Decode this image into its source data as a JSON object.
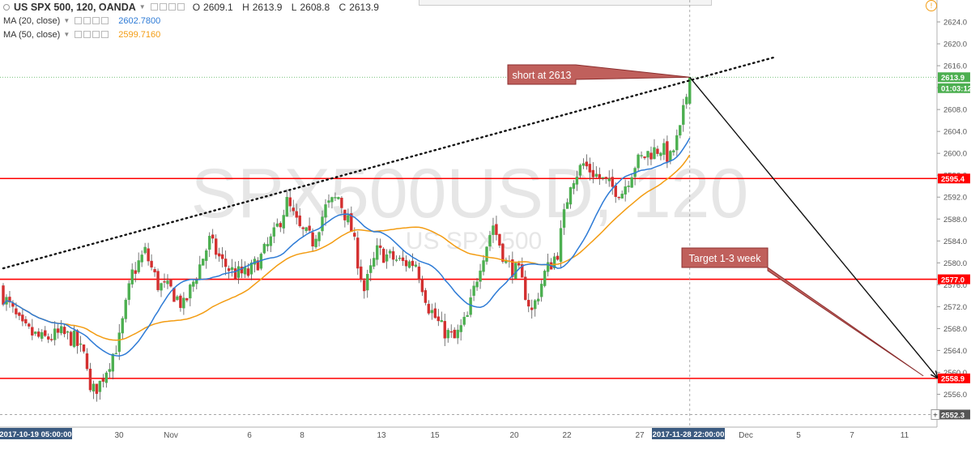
{
  "legend": {
    "symbol": "US SPX 500, 120, OANDA",
    "open_label": "O",
    "open": "2609.1",
    "high_label": "H",
    "high": "2613.9",
    "low_label": "L",
    "low": "2608.8",
    "close_label": "C",
    "close": "2613.9",
    "ma20_label": "MA (20, close)",
    "ma20_value": "2602.7800",
    "ma50_label": "MA (50, close)",
    "ma50_value": "2599.7160"
  },
  "watermark": {
    "main": "SPX500USD, 120",
    "sub": "US SPX 500"
  },
  "annotations": {
    "short": "short at 2613",
    "target": "Target 1-3 week"
  },
  "colors": {
    "up": "#4caf50",
    "down": "#d32f2f",
    "ma20": "#2e7bd6",
    "ma50": "#f39c12",
    "level": "#ff0000",
    "callout_fill": "#c0605c",
    "callout_border": "#8b2e2e"
  },
  "icons": {
    "alert": "alert-icon"
  },
  "chart_data": {
    "type": "candlestick",
    "title": "US SPX 500, 120, OANDA",
    "ylim": [
      2550,
      2628
    ],
    "y_ticks": [
      2624.0,
      2620.0,
      2616.0,
      2612.0,
      2608.0,
      2604.0,
      2600.0,
      2596.0,
      2592.0,
      2588.0,
      2584.0,
      2580.0,
      2576.0,
      2572.0,
      2568.0,
      2564.0,
      2560.0,
      2556.0
    ],
    "x_ticks": [
      {
        "label": "2017-10-19 05:00:00",
        "highlight": true
      },
      {
        "label": "30"
      },
      {
        "label": "Nov"
      },
      {
        "label": "6"
      },
      {
        "label": "8"
      },
      {
        "label": "13"
      },
      {
        "label": "15"
      },
      {
        "label": "20"
      },
      {
        "label": "22"
      },
      {
        "label": "27"
      },
      {
        "label": "2017-11-28 22:00:00",
        "highlight": true
      },
      {
        "label": "Dec"
      },
      {
        "label": "5"
      },
      {
        "label": "7"
      },
      {
        "label": "11"
      }
    ],
    "price_labels": [
      {
        "label": "2613.9",
        "value": 2613.9,
        "color": "#4caf50"
      },
      {
        "label": "01:03:12",
        "value": 2611.9,
        "color": "#4caf50"
      },
      {
        "label": "2595.4",
        "value": 2595.4,
        "color": "#ff0000"
      },
      {
        "label": "2577.0",
        "value": 2577.0,
        "color": "#ff0000"
      },
      {
        "label": "2558.9",
        "value": 2558.9,
        "color": "#ff0000"
      },
      {
        "label": "2552.3",
        "value": 2552.3,
        "color": "#555555"
      }
    ],
    "horizontal_levels": [
      2595.4,
      2577.0,
      2558.9
    ],
    "close_path": [
      [
        0,
        2574
      ],
      [
        6,
        2568
      ],
      [
        12,
        2566
      ],
      [
        18,
        2567
      ],
      [
        22,
        2566
      ],
      [
        26,
        2562
      ],
      [
        27,
        2556
      ],
      [
        30,
        2558
      ],
      [
        36,
        2566
      ],
      [
        40,
        2578
      ],
      [
        44,
        2582
      ],
      [
        48,
        2576
      ],
      [
        52,
        2575
      ],
      [
        56,
        2572
      ],
      [
        60,
        2578
      ],
      [
        64,
        2584
      ],
      [
        68,
        2580
      ],
      [
        72,
        2578
      ],
      [
        76,
        2578
      ],
      [
        80,
        2581
      ],
      [
        84,
        2585
      ],
      [
        88,
        2591
      ],
      [
        92,
        2586
      ],
      [
        96,
        2584
      ],
      [
        100,
        2590
      ],
      [
        104,
        2592
      ],
      [
        108,
        2586
      ],
      [
        112,
        2575
      ],
      [
        116,
        2582
      ],
      [
        120,
        2581
      ],
      [
        124,
        2580
      ],
      [
        128,
        2580
      ],
      [
        132,
        2572
      ],
      [
        136,
        2568
      ],
      [
        140,
        2566
      ],
      [
        144,
        2570
      ],
      [
        148,
        2580
      ],
      [
        152,
        2587
      ],
      [
        156,
        2580
      ],
      [
        160,
        2578
      ],
      [
        164,
        2571
      ],
      [
        168,
        2578
      ],
      [
        172,
        2582
      ],
      [
        176,
        2595
      ],
      [
        180,
        2598
      ],
      [
        184,
        2596
      ],
      [
        188,
        2594
      ],
      [
        192,
        2593
      ],
      [
        196,
        2598
      ],
      [
        200,
        2600
      ],
      [
        204,
        2601
      ],
      [
        207,
        2599
      ],
      [
        210,
        2604
      ],
      [
        213,
        2613.9
      ]
    ],
    "candle_count": 214,
    "ma20_last": 2602.78,
    "ma50_last": 2599.716,
    "projection": {
      "from": [
        213,
        2613.9
      ],
      "to": [
        290,
        2558.9
      ]
    },
    "trendline": {
      "from": [
        0,
        2579
      ],
      "to": [
        239,
        2617.5
      ]
    }
  }
}
